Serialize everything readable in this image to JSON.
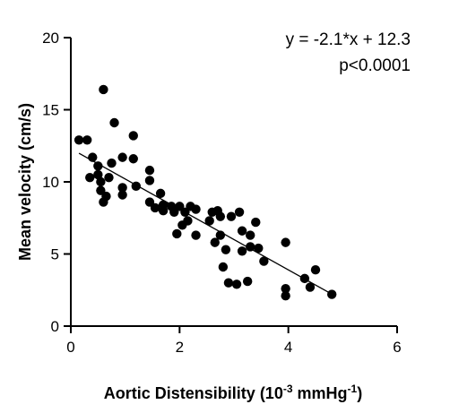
{
  "chart_data": {
    "type": "scatter",
    "title": "",
    "xlabel_parts": {
      "base": "Aortic Distensibility (10",
      "exp1": "-3",
      "mid": " mmHg",
      "exp2": "-1",
      "end": ")"
    },
    "ylabel": "Mean velocity (cm/s)",
    "xlim": [
      0,
      6
    ],
    "ylim": [
      0,
      20
    ],
    "x_ticks": [
      0,
      2,
      4,
      6
    ],
    "y_ticks": [
      0,
      5,
      10,
      15,
      20
    ],
    "grid": false,
    "annotations": [
      "y = -2.1*x + 12.3",
      "p<0.0001"
    ],
    "fit_line": {
      "slope": -2.1,
      "intercept": 12.3,
      "x_range": [
        0.15,
        4.8
      ]
    },
    "point_color": "#000000",
    "points": [
      {
        "x": 0.15,
        "y": 12.9
      },
      {
        "x": 0.3,
        "y": 12.9
      },
      {
        "x": 0.35,
        "y": 10.3
      },
      {
        "x": 0.4,
        "y": 11.7
      },
      {
        "x": 0.5,
        "y": 10.5
      },
      {
        "x": 0.5,
        "y": 11.1
      },
      {
        "x": 0.55,
        "y": 10.0
      },
      {
        "x": 0.55,
        "y": 9.4
      },
      {
        "x": 0.6,
        "y": 16.4
      },
      {
        "x": 0.6,
        "y": 8.6
      },
      {
        "x": 0.65,
        "y": 9.0
      },
      {
        "x": 0.7,
        "y": 10.3
      },
      {
        "x": 0.75,
        "y": 11.3
      },
      {
        "x": 0.8,
        "y": 14.1
      },
      {
        "x": 0.95,
        "y": 11.7
      },
      {
        "x": 0.95,
        "y": 9.6
      },
      {
        "x": 0.95,
        "y": 9.1
      },
      {
        "x": 1.15,
        "y": 13.2
      },
      {
        "x": 1.15,
        "y": 11.6
      },
      {
        "x": 1.2,
        "y": 9.7
      },
      {
        "x": 1.45,
        "y": 10.8
      },
      {
        "x": 1.45,
        "y": 10.1
      },
      {
        "x": 1.45,
        "y": 8.6
      },
      {
        "x": 1.55,
        "y": 8.2
      },
      {
        "x": 1.65,
        "y": 9.2
      },
      {
        "x": 1.7,
        "y": 8.4
      },
      {
        "x": 1.7,
        "y": 8.0
      },
      {
        "x": 1.85,
        "y": 8.3
      },
      {
        "x": 1.9,
        "y": 7.9
      },
      {
        "x": 1.95,
        "y": 6.4
      },
      {
        "x": 2.0,
        "y": 8.3
      },
      {
        "x": 2.05,
        "y": 7.0
      },
      {
        "x": 2.1,
        "y": 7.9
      },
      {
        "x": 2.15,
        "y": 7.3
      },
      {
        "x": 2.2,
        "y": 8.3
      },
      {
        "x": 2.3,
        "y": 8.1
      },
      {
        "x": 2.3,
        "y": 6.3
      },
      {
        "x": 2.55,
        "y": 7.3
      },
      {
        "x": 2.6,
        "y": 7.9
      },
      {
        "x": 2.65,
        "y": 5.8
      },
      {
        "x": 2.7,
        "y": 8.0
      },
      {
        "x": 2.75,
        "y": 6.3
      },
      {
        "x": 2.75,
        "y": 7.6
      },
      {
        "x": 2.8,
        "y": 4.1
      },
      {
        "x": 2.85,
        "y": 5.3
      },
      {
        "x": 2.9,
        "y": 3.0
      },
      {
        "x": 2.95,
        "y": 7.6
      },
      {
        "x": 3.05,
        "y": 2.9
      },
      {
        "x": 3.1,
        "y": 7.9
      },
      {
        "x": 3.15,
        "y": 6.6
      },
      {
        "x": 3.15,
        "y": 5.2
      },
      {
        "x": 3.25,
        "y": 3.1
      },
      {
        "x": 3.3,
        "y": 6.3
      },
      {
        "x": 3.3,
        "y": 5.5
      },
      {
        "x": 3.4,
        "y": 7.2
      },
      {
        "x": 3.45,
        "y": 5.4
      },
      {
        "x": 3.55,
        "y": 4.5
      },
      {
        "x": 3.95,
        "y": 5.8
      },
      {
        "x": 3.95,
        "y": 2.6
      },
      {
        "x": 3.95,
        "y": 2.1
      },
      {
        "x": 4.3,
        "y": 3.3
      },
      {
        "x": 4.4,
        "y": 2.7
      },
      {
        "x": 4.5,
        "y": 3.9
      },
      {
        "x": 4.8,
        "y": 2.2
      }
    ]
  }
}
